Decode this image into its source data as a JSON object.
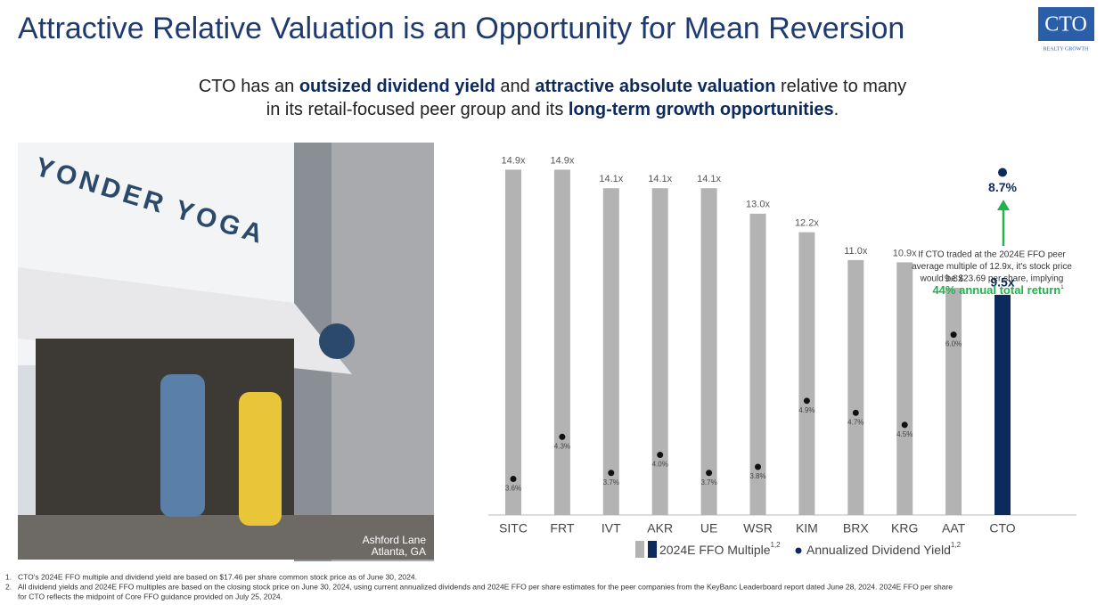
{
  "title": "Attractive Relative Valuation is an Opportunity for Mean Reversion",
  "logo": {
    "name": "CTO",
    "tagline": "REALTY GROWTH"
  },
  "subtitle": {
    "lines": [
      [
        {
          "text": "CTO has an ",
          "bold": false
        },
        {
          "text": "outsized dividend yield",
          "bold": true
        },
        {
          "text": " and ",
          "bold": false
        },
        {
          "text": "attractive absolute valuation",
          "bold": true
        },
        {
          "text": " relative to many",
          "bold": false
        }
      ],
      [
        {
          "text": "in its retail-focused peer group and its ",
          "bold": false
        },
        {
          "text": "long-term growth opportunities",
          "bold": true
        },
        {
          "text": ".",
          "bold": false
        }
      ]
    ]
  },
  "photo": {
    "sign": "YONDER YOGA",
    "caption": [
      "Ashford Lane",
      "Atlanta, GA"
    ]
  },
  "chart_data": {
    "type": "bar",
    "categories": [
      "SITC",
      "FRT",
      "IVT",
      "AKR",
      "UE",
      "WSR",
      "KIM",
      "BRX",
      "KRG",
      "AAT",
      "CTO"
    ],
    "highlight": "CTO",
    "series": [
      {
        "name": "2024E FFO Multiple",
        "note": "1,2",
        "color": "#b3b3b3",
        "highlight_color": "#0d2a5c",
        "values": [
          14.9,
          14.9,
          14.1,
          14.1,
          14.1,
          13.0,
          12.2,
          11.0,
          10.9,
          9.8,
          9.5
        ],
        "value_labels": [
          "14.9x",
          "14.9x",
          "14.1x",
          "14.1x",
          "14.1x",
          "13.0x",
          "12.2x",
          "11.0x",
          "10.9x",
          "9.8x",
          "9.5x"
        ]
      },
      {
        "name": "Annualized Dividend Yield",
        "note": "1,2",
        "type": "dot",
        "axis": "y2",
        "color": "#111111",
        "highlight_color": "#0d2a5c",
        "values": [
          3.6,
          4.3,
          3.7,
          4.0,
          3.7,
          3.8,
          4.9,
          4.7,
          4.5,
          6.0,
          8.7
        ],
        "value_labels": [
          "3.6%",
          "4.3%",
          "3.7%",
          "4.0%",
          "3.7%",
          "3.8%",
          "4.9%",
          "4.7%",
          "4.5%",
          "6.0%",
          "8.7%"
        ]
      }
    ],
    "ylim": [
      0,
      15.3
    ],
    "y2lim": [
      3,
      8.9
    ],
    "annotation": {
      "lines": [
        "If CTO traded at the 2024E FFO peer",
        "average multiple of 12.9x, it's stock price",
        "would be $23.69 per share, implying"
      ],
      "emphasis": "44% annual total return",
      "emphasis_note": "1",
      "color": "#22b24c"
    }
  },
  "footnotes": [
    {
      "marker": "1.",
      "lines": [
        "CTO's 2024E FFO multiple and dividend yield are based on $17.46 per share common stock price as of June 30, 2024."
      ]
    },
    {
      "marker": "2.",
      "lines": [
        "All dividend yields and 2024E FFO multiples are based on the closing stock price on June 30, 2024, using current annualized dividends and 2024E FFO per share estimates for the peer companies from the KeyBanc Leaderboard report dated June 28, 2024. 2024E FFO per share",
        "for CTO reflects the midpoint of Core FFO guidance provided on July 25, 2024."
      ]
    }
  ]
}
